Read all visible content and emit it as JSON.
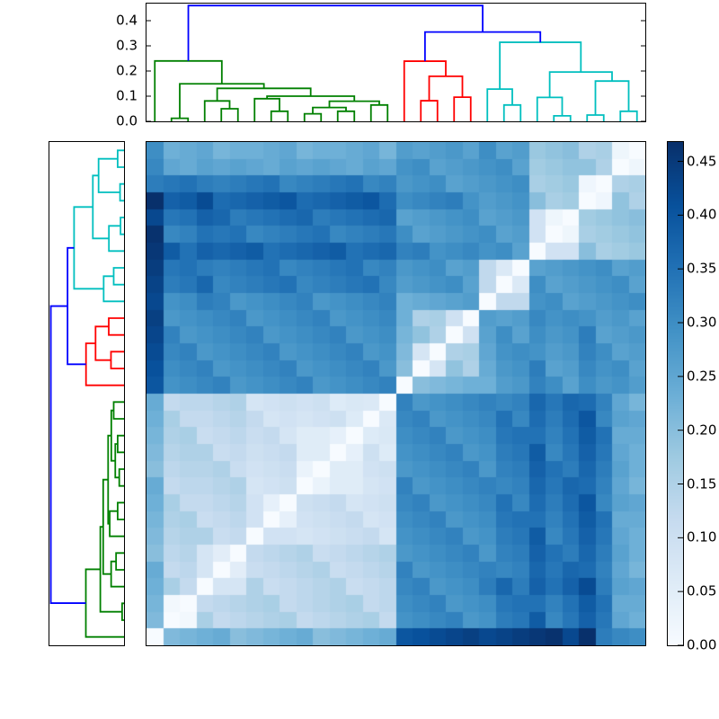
{
  "chart_data": {
    "type": "heatmap",
    "title": "",
    "n": 30,
    "vmin": 0,
    "vmax": 0.468,
    "colormap": {
      "name": "Blues",
      "stops": [
        "#f7fbff",
        "#deebf7",
        "#c6dbef",
        "#9ecae1",
        "#6baed6",
        "#4292c6",
        "#2171b5",
        "#08519c",
        "#08306b"
      ]
    },
    "row_order": "reversed-columns",
    "matrix": [
      [
        0,
        0.21,
        0.22,
        0.23,
        0.24,
        0.2,
        0.21,
        0.22,
        0.23,
        0.24,
        0.2,
        0.21,
        0.22,
        0.23,
        0.24,
        0.4,
        0.41,
        0.42,
        0.43,
        0.44,
        0.425,
        0.435,
        0.445,
        0.455,
        0.465,
        0.425,
        0.468,
        0.33,
        0.31,
        0.3
      ],
      [
        0.21,
        0,
        0.012,
        0.16,
        0.12,
        0.13,
        0.14,
        0.15,
        0.16,
        0.12,
        0.13,
        0.14,
        0.15,
        0.16,
        0.12,
        0.29,
        0.3,
        0.31,
        0.32,
        0.28,
        0.29,
        0.33,
        0.34,
        0.39,
        0.31,
        0.34,
        0.38,
        0.34,
        0.25,
        0.23
      ],
      [
        0.22,
        0.012,
        0,
        0.12,
        0.13,
        0.14,
        0.15,
        0.16,
        0.12,
        0.13,
        0.14,
        0.15,
        0.16,
        0.12,
        0.13,
        0.3,
        0.31,
        0.32,
        0.28,
        0.29,
        0.3,
        0.34,
        0.35,
        0.35,
        0.32,
        0.35,
        0.39,
        0.35,
        0.24,
        0.24
      ],
      [
        0.23,
        0.16,
        0.12,
        0,
        0.08,
        0.08,
        0.15,
        0.11,
        0.12,
        0.13,
        0.14,
        0.15,
        0.11,
        0.12,
        0.13,
        0.31,
        0.32,
        0.28,
        0.29,
        0.3,
        0.33,
        0.37,
        0.33,
        0.38,
        0.35,
        0.38,
        0.42,
        0.33,
        0.26,
        0.25
      ],
      [
        0.24,
        0.12,
        0.13,
        0.08,
        0,
        0.05,
        0.11,
        0.12,
        0.13,
        0.14,
        0.15,
        0.11,
        0.12,
        0.13,
        0.14,
        0.32,
        0.28,
        0.29,
        0.3,
        0.31,
        0.32,
        0.31,
        0.32,
        0.37,
        0.34,
        0.37,
        0.36,
        0.32,
        0.25,
        0.22
      ],
      [
        0.2,
        0.13,
        0.14,
        0.08,
        0.05,
        0,
        0.12,
        0.13,
        0.14,
        0.15,
        0.11,
        0.12,
        0.13,
        0.14,
        0.15,
        0.28,
        0.29,
        0.3,
        0.31,
        0.32,
        0.28,
        0.32,
        0.33,
        0.38,
        0.35,
        0.33,
        0.37,
        0.33,
        0.26,
        0.23
      ],
      [
        0.21,
        0.14,
        0.15,
        0.15,
        0.11,
        0.12,
        0,
        0.09,
        0.09,
        0.08,
        0.09,
        0.1,
        0.11,
        0.12,
        0.08,
        0.29,
        0.3,
        0.31,
        0.32,
        0.28,
        0.29,
        0.33,
        0.34,
        0.39,
        0.31,
        0.34,
        0.38,
        0.34,
        0.25,
        0.23
      ],
      [
        0.22,
        0.15,
        0.16,
        0.11,
        0.12,
        0.13,
        0.09,
        0,
        0.04,
        0.09,
        0.1,
        0.11,
        0.12,
        0.08,
        0.09,
        0.3,
        0.31,
        0.32,
        0.28,
        0.29,
        0.3,
        0.34,
        0.35,
        0.35,
        0.32,
        0.35,
        0.39,
        0.35,
        0.24,
        0.24
      ],
      [
        0.23,
        0.16,
        0.12,
        0.12,
        0.13,
        0.14,
        0.09,
        0.04,
        0,
        0.1,
        0.11,
        0.12,
        0.08,
        0.09,
        0.1,
        0.31,
        0.32,
        0.28,
        0.29,
        0.3,
        0.31,
        0.35,
        0.31,
        0.36,
        0.33,
        0.36,
        0.4,
        0.31,
        0.26,
        0.25
      ],
      [
        0.24,
        0.12,
        0.13,
        0.13,
        0.14,
        0.15,
        0.08,
        0.09,
        0.1,
        0,
        0.03,
        0.055,
        0.055,
        0.08,
        0.09,
        0.32,
        0.28,
        0.29,
        0.3,
        0.31,
        0.32,
        0.31,
        0.32,
        0.37,
        0.34,
        0.37,
        0.36,
        0.32,
        0.25,
        0.22
      ],
      [
        0.2,
        0.13,
        0.14,
        0.14,
        0.15,
        0.11,
        0.09,
        0.1,
        0.11,
        0.03,
        0,
        0.055,
        0.055,
        0.09,
        0.1,
        0.28,
        0.29,
        0.3,
        0.31,
        0.32,
        0.28,
        0.32,
        0.33,
        0.38,
        0.35,
        0.33,
        0.37,
        0.33,
        0.26,
        0.23
      ],
      [
        0.21,
        0.14,
        0.15,
        0.15,
        0.11,
        0.12,
        0.1,
        0.11,
        0.12,
        0.055,
        0.055,
        0,
        0.04,
        0.1,
        0.06,
        0.29,
        0.3,
        0.31,
        0.32,
        0.28,
        0.29,
        0.33,
        0.34,
        0.39,
        0.31,
        0.34,
        0.38,
        0.34,
        0.25,
        0.23
      ],
      [
        0.22,
        0.15,
        0.16,
        0.11,
        0.12,
        0.13,
        0.11,
        0.12,
        0.08,
        0.055,
        0.055,
        0.04,
        0,
        0.06,
        0.07,
        0.3,
        0.31,
        0.32,
        0.28,
        0.29,
        0.3,
        0.34,
        0.35,
        0.35,
        0.32,
        0.35,
        0.39,
        0.35,
        0.24,
        0.24
      ],
      [
        0.23,
        0.16,
        0.12,
        0.12,
        0.13,
        0.14,
        0.12,
        0.08,
        0.09,
        0.08,
        0.09,
        0.1,
        0.06,
        0,
        0.065,
        0.31,
        0.32,
        0.28,
        0.29,
        0.3,
        0.31,
        0.35,
        0.31,
        0.36,
        0.33,
        0.36,
        0.4,
        0.31,
        0.26,
        0.25
      ],
      [
        0.24,
        0.12,
        0.13,
        0.13,
        0.14,
        0.15,
        0.08,
        0.09,
        0.1,
        0.09,
        0.1,
        0.06,
        0.07,
        0.065,
        0,
        0.32,
        0.28,
        0.29,
        0.3,
        0.31,
        0.32,
        0.31,
        0.32,
        0.37,
        0.34,
        0.37,
        0.36,
        0.32,
        0.25,
        0.22
      ],
      [
        0.4,
        0.29,
        0.3,
        0.31,
        0.32,
        0.28,
        0.29,
        0.3,
        0.31,
        0.32,
        0.28,
        0.29,
        0.3,
        0.31,
        0.32,
        0,
        0.2,
        0.21,
        0.22,
        0.23,
        0.23,
        0.27,
        0.28,
        0.32,
        0.3,
        0.26,
        0.3,
        0.28,
        0.29,
        0.27
      ],
      [
        0.41,
        0.3,
        0.31,
        0.32,
        0.28,
        0.29,
        0.3,
        0.31,
        0.32,
        0.28,
        0.29,
        0.3,
        0.31,
        0.32,
        0.28,
        0.2,
        0,
        0.08,
        0.19,
        0.15,
        0.24,
        0.28,
        0.29,
        0.33,
        0.26,
        0.27,
        0.31,
        0.29,
        0.3,
        0.26
      ],
      [
        0.42,
        0.31,
        0.32,
        0.28,
        0.29,
        0.3,
        0.31,
        0.32,
        0.28,
        0.29,
        0.3,
        0.31,
        0.32,
        0.28,
        0.29,
        0.21,
        0.08,
        0,
        0.15,
        0.16,
        0.25,
        0.29,
        0.3,
        0.29,
        0.27,
        0.28,
        0.32,
        0.3,
        0.26,
        0.27
      ],
      [
        0.43,
        0.32,
        0.28,
        0.29,
        0.3,
        0.31,
        0.32,
        0.28,
        0.29,
        0.3,
        0.31,
        0.32,
        0.28,
        0.29,
        0.3,
        0.22,
        0.19,
        0.15,
        0,
        0.095,
        0.26,
        0.3,
        0.26,
        0.3,
        0.28,
        0.29,
        0.33,
        0.26,
        0.27,
        0.28
      ],
      [
        0.44,
        0.28,
        0.29,
        0.3,
        0.31,
        0.32,
        0.28,
        0.29,
        0.3,
        0.31,
        0.32,
        0.28,
        0.29,
        0.3,
        0.31,
        0.23,
        0.15,
        0.16,
        0.095,
        0,
        0.27,
        0.26,
        0.27,
        0.31,
        0.29,
        0.3,
        0.29,
        0.27,
        0.28,
        0.26
      ],
      [
        0.425,
        0.29,
        0.3,
        0.33,
        0.32,
        0.28,
        0.29,
        0.3,
        0.31,
        0.32,
        0.28,
        0.29,
        0.3,
        0.31,
        0.32,
        0.23,
        0.24,
        0.25,
        0.26,
        0.27,
        0,
        0.125,
        0.125,
        0.29,
        0.3,
        0.26,
        0.27,
        0.28,
        0.29,
        0.3
      ],
      [
        0.435,
        0.33,
        0.34,
        0.37,
        0.31,
        0.32,
        0.33,
        0.34,
        0.35,
        0.31,
        0.32,
        0.33,
        0.34,
        0.35,
        0.31,
        0.27,
        0.28,
        0.29,
        0.3,
        0.26,
        0.125,
        0,
        0.065,
        0.3,
        0.26,
        0.27,
        0.28,
        0.29,
        0.3,
        0.26
      ],
      [
        0.445,
        0.34,
        0.35,
        0.33,
        0.32,
        0.33,
        0.34,
        0.35,
        0.31,
        0.32,
        0.33,
        0.34,
        0.35,
        0.31,
        0.32,
        0.28,
        0.29,
        0.3,
        0.26,
        0.27,
        0.125,
        0.065,
        0,
        0.26,
        0.27,
        0.28,
        0.29,
        0.3,
        0.26,
        0.27
      ],
      [
        0.455,
        0.39,
        0.35,
        0.38,
        0.37,
        0.38,
        0.39,
        0.35,
        0.36,
        0.37,
        0.38,
        0.39,
        0.35,
        0.36,
        0.37,
        0.32,
        0.33,
        0.29,
        0.3,
        0.31,
        0.29,
        0.3,
        0.26,
        0,
        0.09,
        0.09,
        0.2,
        0.16,
        0.17,
        0.18
      ],
      [
        0.465,
        0.31,
        0.32,
        0.35,
        0.34,
        0.35,
        0.31,
        0.32,
        0.33,
        0.34,
        0.35,
        0.31,
        0.32,
        0.33,
        0.34,
        0.3,
        0.26,
        0.27,
        0.28,
        0.29,
        0.3,
        0.26,
        0.27,
        0.09,
        0,
        0.02,
        0.16,
        0.17,
        0.18,
        0.19
      ],
      [
        0.425,
        0.34,
        0.35,
        0.38,
        0.37,
        0.33,
        0.34,
        0.35,
        0.36,
        0.37,
        0.33,
        0.34,
        0.35,
        0.36,
        0.37,
        0.26,
        0.27,
        0.28,
        0.29,
        0.3,
        0.26,
        0.27,
        0.28,
        0.09,
        0.02,
        0,
        0.17,
        0.18,
        0.19,
        0.2
      ],
      [
        0.468,
        0.38,
        0.39,
        0.42,
        0.36,
        0.37,
        0.38,
        0.39,
        0.4,
        0.36,
        0.37,
        0.38,
        0.39,
        0.4,
        0.36,
        0.3,
        0.31,
        0.32,
        0.33,
        0.29,
        0.27,
        0.28,
        0.29,
        0.2,
        0.16,
        0.17,
        0,
        0.018,
        0.19,
        0.15
      ],
      [
        0.33,
        0.34,
        0.35,
        0.33,
        0.32,
        0.33,
        0.34,
        0.35,
        0.31,
        0.32,
        0.33,
        0.34,
        0.35,
        0.31,
        0.32,
        0.28,
        0.29,
        0.3,
        0.26,
        0.27,
        0.28,
        0.29,
        0.3,
        0.16,
        0.17,
        0.18,
        0.018,
        0,
        0.15,
        0.16
      ],
      [
        0.31,
        0.25,
        0.24,
        0.26,
        0.25,
        0.26,
        0.25,
        0.24,
        0.26,
        0.25,
        0.26,
        0.25,
        0.24,
        0.26,
        0.25,
        0.29,
        0.3,
        0.26,
        0.27,
        0.28,
        0.29,
        0.3,
        0.26,
        0.17,
        0.18,
        0.19,
        0.19,
        0.15,
        0,
        0.02
      ],
      [
        0.3,
        0.23,
        0.24,
        0.25,
        0.22,
        0.23,
        0.23,
        0.24,
        0.25,
        0.22,
        0.23,
        0.23,
        0.24,
        0.25,
        0.22,
        0.27,
        0.26,
        0.27,
        0.28,
        0.26,
        0.3,
        0.26,
        0.27,
        0.18,
        0.19,
        0.2,
        0.15,
        0.16,
        0.02,
        0
      ]
    ],
    "top_dendrogram": {
      "ytick_labels": [
        "0.0",
        "0.1",
        "0.2",
        "0.3",
        "0.4"
      ],
      "ytick_values": [
        0,
        0.1,
        0.2,
        0.3,
        0.4
      ],
      "link_colors": {
        "green": "#008000",
        "red": "#ff0000",
        "cyan": "#00bfbf",
        "blue": "#0000ff"
      },
      "clusters": [
        {
          "color_key": "green",
          "tree": [
            0,
            [
              [
                1,
                2,
                0.012
              ],
              [
                [
                  3,
                  [
                    4,
                    5,
                    0.05
                  ],
                  0.081
                ],
                [
                  [
                    6,
                    [
                      7,
                      8,
                      0.04
                    ],
                    0.09
                  ],
                  [
                    [
                      [
                        9,
                        10,
                        0.03
                      ],
                      [
                        11,
                        12,
                        0.04
                      ],
                      0.055
                    ],
                    [
                      13,
                      14,
                      0.065
                    ],
                    0.08
                  ],
                  0.1
                ],
                0.131
              ],
              0.149
            ],
            0.24
          ]
        },
        {
          "color_key": "red",
          "tree": [
            15,
            [
              [
                16,
                17,
                0.082
              ],
              [
                18,
                19,
                0.096
              ],
              0.179
            ],
            0.239
          ]
        },
        {
          "color_key": "cyan",
          "tree": [
            [
              20,
              [
                21,
                22,
                0.065
              ],
              0.128
            ],
            [
              [
                23,
                [
                  24,
                  25,
                  0.022
                ],
                0.095
              ],
              [
                [
                  26,
                  27,
                  0.025
                ],
                [
                  28,
                  29,
                  0.04
                ],
                0.16
              ],
              0.196
            ],
            0.314
          ]
        }
      ],
      "blue_links": {
        "join_height": 0.355,
        "root_height": 0.46,
        "color_key": "blue"
      }
    },
    "row_dendrogram": {
      "same_tree_as_top": true,
      "leaf_order_top_to_bottom": "reversed"
    },
    "colorbar": {
      "tick_labels": [
        "0.00",
        "0.05",
        "0.10",
        "0.15",
        "0.20",
        "0.25",
        "0.30",
        "0.35",
        "0.40",
        "0.45"
      ],
      "tick_values": [
        0,
        0.05,
        0.1,
        0.15,
        0.2,
        0.25,
        0.3,
        0.35,
        0.4,
        0.45
      ]
    }
  }
}
